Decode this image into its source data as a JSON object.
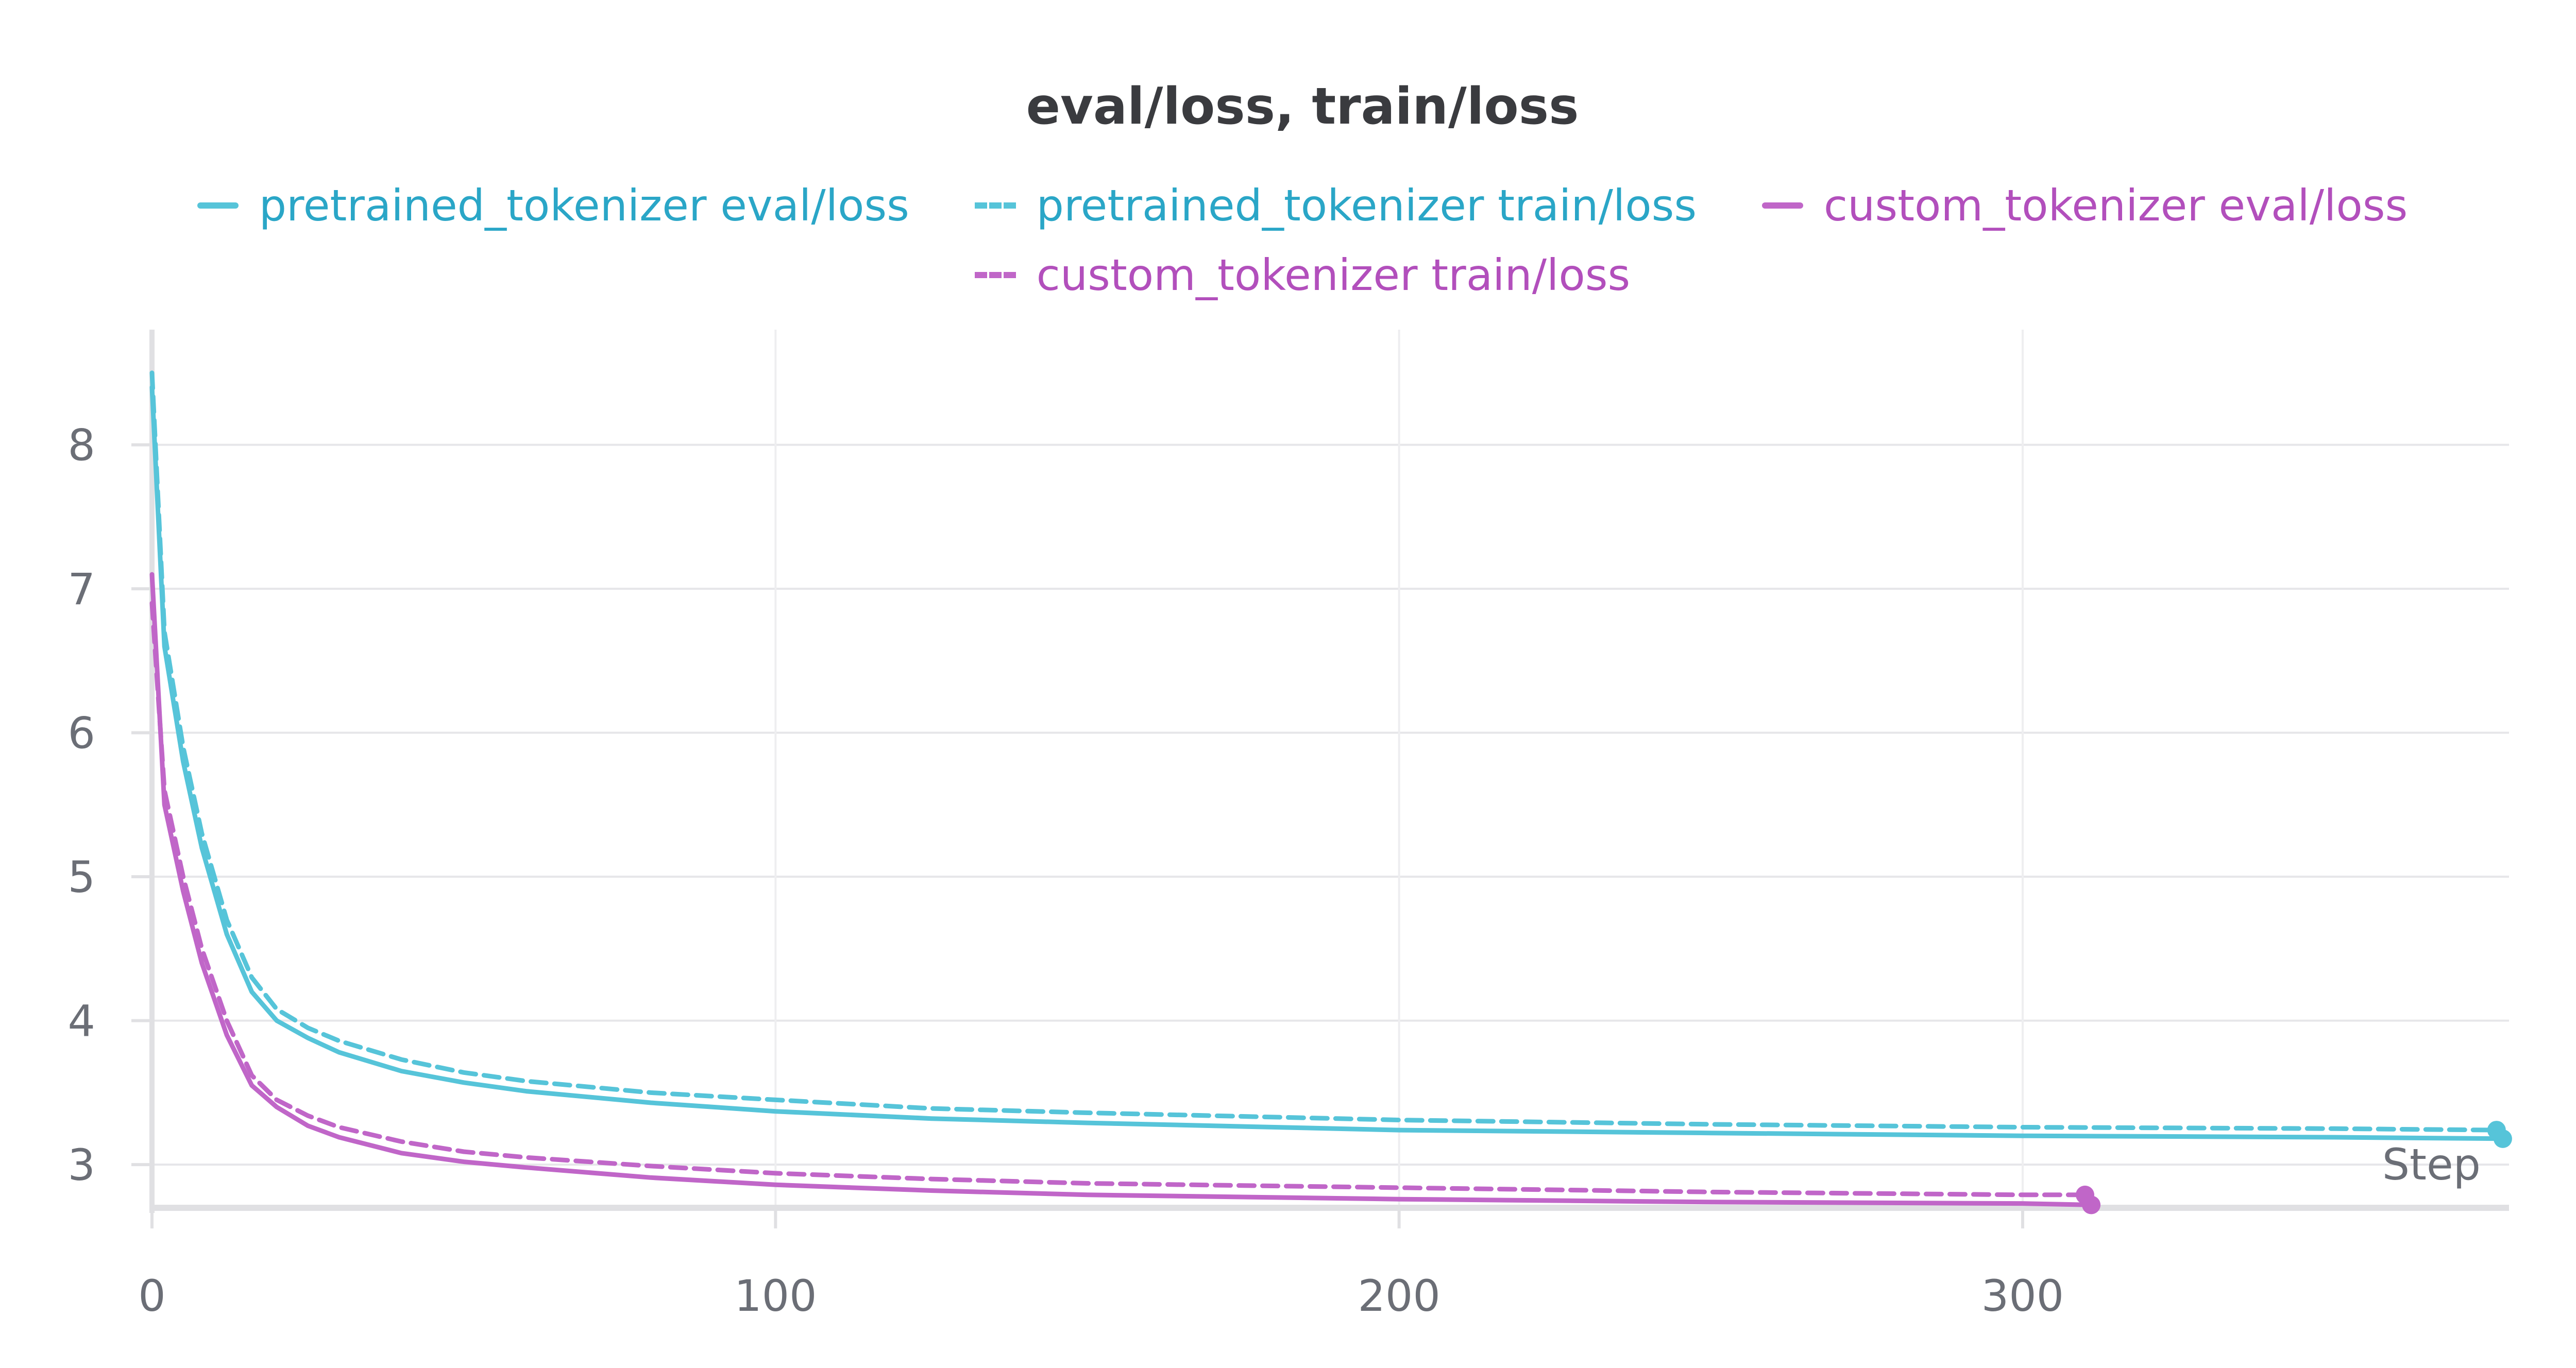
{
  "chart_data": {
    "type": "line",
    "title": "eval/loss, train/loss",
    "xlabel": "Step",
    "ylabel": "",
    "xlim": [
      0,
      378
    ],
    "ylim": [
      2.7,
      8.8
    ],
    "x_ticks": [
      "0",
      "100",
      "200",
      "300"
    ],
    "y_ticks": [
      "3",
      "4",
      "5",
      "6",
      "7",
      "8"
    ],
    "grid": true,
    "legend_position": "top-center",
    "series": [
      {
        "name": "pretrained_tokenizer eval/loss",
        "color": "#56c4d9",
        "dash": false,
        "x": [
          0,
          2,
          5,
          8,
          12,
          16,
          20,
          25,
          30,
          40,
          50,
          60,
          80,
          100,
          125,
          150,
          200,
          250,
          300,
          350,
          377
        ],
        "y": [
          8.4,
          6.6,
          5.8,
          5.2,
          4.6,
          4.2,
          4.0,
          3.88,
          3.78,
          3.65,
          3.57,
          3.51,
          3.43,
          3.37,
          3.32,
          3.29,
          3.24,
          3.22,
          3.2,
          3.19,
          3.18
        ]
      },
      {
        "name": "pretrained_tokenizer train/loss",
        "color": "#56c4d9",
        "dash": true,
        "x": [
          0,
          2,
          5,
          8,
          12,
          16,
          20,
          25,
          30,
          40,
          50,
          60,
          80,
          100,
          125,
          150,
          200,
          250,
          300,
          350,
          376
        ],
        "y": [
          8.5,
          6.7,
          5.9,
          5.3,
          4.7,
          4.3,
          4.08,
          3.95,
          3.86,
          3.73,
          3.64,
          3.58,
          3.5,
          3.45,
          3.39,
          3.36,
          3.31,
          3.28,
          3.26,
          3.25,
          3.24
        ]
      },
      {
        "name": "custom_tokenizer eval/loss",
        "color": "#c066c8",
        "dash": false,
        "x": [
          0,
          2,
          5,
          8,
          12,
          16,
          20,
          25,
          30,
          40,
          50,
          60,
          80,
          100,
          125,
          150,
          200,
          250,
          300,
          311
        ],
        "y": [
          7.1,
          5.5,
          4.9,
          4.4,
          3.9,
          3.55,
          3.4,
          3.27,
          3.19,
          3.08,
          3.02,
          2.98,
          2.91,
          2.86,
          2.82,
          2.79,
          2.76,
          2.74,
          2.73,
          2.72
        ]
      },
      {
        "name": "custom_tokenizer train/loss",
        "color": "#c066c8",
        "dash": true,
        "x": [
          0,
          2,
          5,
          8,
          12,
          16,
          20,
          25,
          30,
          40,
          50,
          60,
          80,
          100,
          125,
          150,
          200,
          250,
          300,
          310
        ],
        "y": [
          6.9,
          5.6,
          5.0,
          4.5,
          4.0,
          3.62,
          3.45,
          3.34,
          3.26,
          3.16,
          3.09,
          3.05,
          2.99,
          2.94,
          2.9,
          2.87,
          2.84,
          2.81,
          2.79,
          2.79
        ]
      }
    ]
  }
}
